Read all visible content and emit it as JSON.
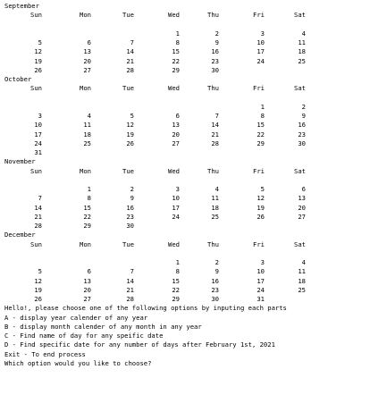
{
  "weekdays": [
    "Sun",
    "Mon",
    "Tue",
    "Wed",
    "Thu",
    "Fri",
    "Sat"
  ],
  "months": [
    {
      "name": "September",
      "weeks": [
        [
          "",
          "",
          "",
          "1",
          "2",
          "3",
          "4"
        ],
        [
          "5",
          "6",
          "7",
          "8",
          "9",
          "10",
          "11"
        ],
        [
          "12",
          "13",
          "14",
          "15",
          "16",
          "17",
          "18"
        ],
        [
          "19",
          "20",
          "21",
          "22",
          "23",
          "24",
          "25"
        ],
        [
          "26",
          "27",
          "28",
          "29",
          "30",
          "",
          ""
        ]
      ]
    },
    {
      "name": "October",
      "weeks": [
        [
          "",
          "",
          "",
          "",
          "",
          "1",
          "2"
        ],
        [
          "3",
          "4",
          "5",
          "6",
          "7",
          "8",
          "9"
        ],
        [
          "10",
          "11",
          "12",
          "13",
          "14",
          "15",
          "16"
        ],
        [
          "17",
          "18",
          "19",
          "20",
          "21",
          "22",
          "23"
        ],
        [
          "24",
          "25",
          "26",
          "27",
          "28",
          "29",
          "30"
        ],
        [
          "31",
          "",
          "",
          "",
          "",
          "",
          ""
        ]
      ]
    },
    {
      "name": "November",
      "weeks": [
        [
          "",
          "1",
          "2",
          "3",
          "4",
          "5",
          "6"
        ],
        [
          "7",
          "8",
          "9",
          "10",
          "11",
          "12",
          "13"
        ],
        [
          "14",
          "15",
          "16",
          "17",
          "18",
          "19",
          "20"
        ],
        [
          "21",
          "22",
          "23",
          "24",
          "25",
          "26",
          "27"
        ],
        [
          "28",
          "29",
          "30",
          "",
          "",
          "",
          ""
        ]
      ]
    },
    {
      "name": "December",
      "weeks": [
        [
          "",
          "",
          "",
          "1",
          "2",
          "3",
          "4"
        ],
        [
          "5",
          "6",
          "7",
          "8",
          "9",
          "10",
          "11"
        ],
        [
          "12",
          "13",
          "14",
          "15",
          "16",
          "17",
          "18"
        ],
        [
          "19",
          "20",
          "21",
          "22",
          "23",
          "24",
          "25"
        ],
        [
          "26",
          "27",
          "28",
          "29",
          "30",
          "31",
          ""
        ]
      ]
    }
  ],
  "menu": [
    "Hello!, please choose one of the following options by inputing each parts",
    "A - display year calender of any year",
    "B - display month calender of any month in any year",
    "C - Find name of day for any speific date",
    "D - Find specific date for any number of days after February 1st, 2021",
    "Exit - To end process",
    "Which option would you like to choose?"
  ]
}
